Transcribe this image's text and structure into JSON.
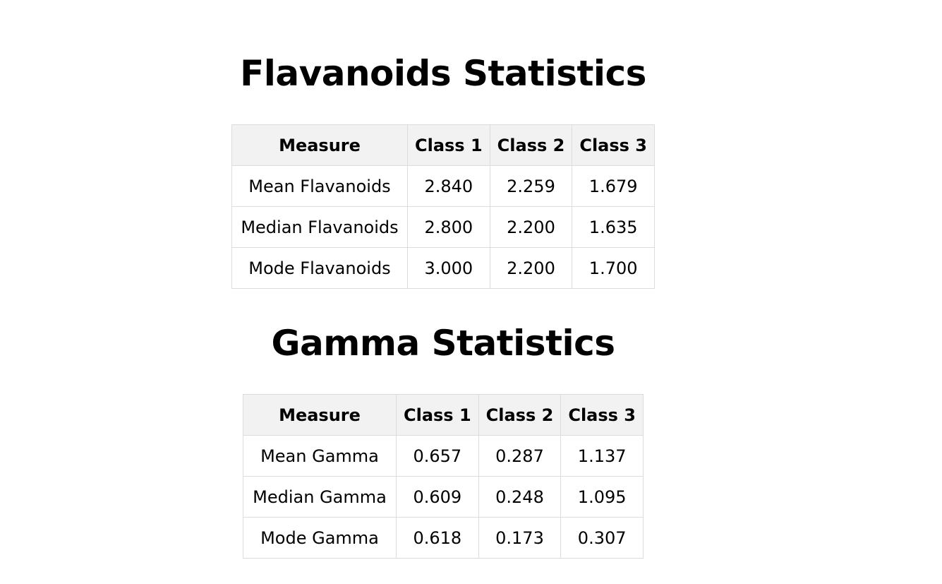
{
  "sections": [
    {
      "title": "Flavanoids Statistics",
      "headers": [
        "Measure",
        "Class 1",
        "Class 2",
        "Class 3"
      ],
      "rows": [
        [
          "Mean Flavanoids",
          "2.840",
          "2.259",
          "1.679"
        ],
        [
          "Median Flavanoids",
          "2.800",
          "2.200",
          "1.635"
        ],
        [
          "Mode Flavanoids",
          "3.000",
          "2.200",
          "1.700"
        ]
      ]
    },
    {
      "title": "Gamma Statistics",
      "headers": [
        "Measure",
        "Class 1",
        "Class 2",
        "Class 3"
      ],
      "rows": [
        [
          "Mean Gamma",
          "0.657",
          "0.287",
          "1.137"
        ],
        [
          "Median Gamma",
          "0.609",
          "0.248",
          "1.095"
        ],
        [
          "Mode Gamma",
          "0.618",
          "0.173",
          "0.307"
        ]
      ]
    }
  ]
}
